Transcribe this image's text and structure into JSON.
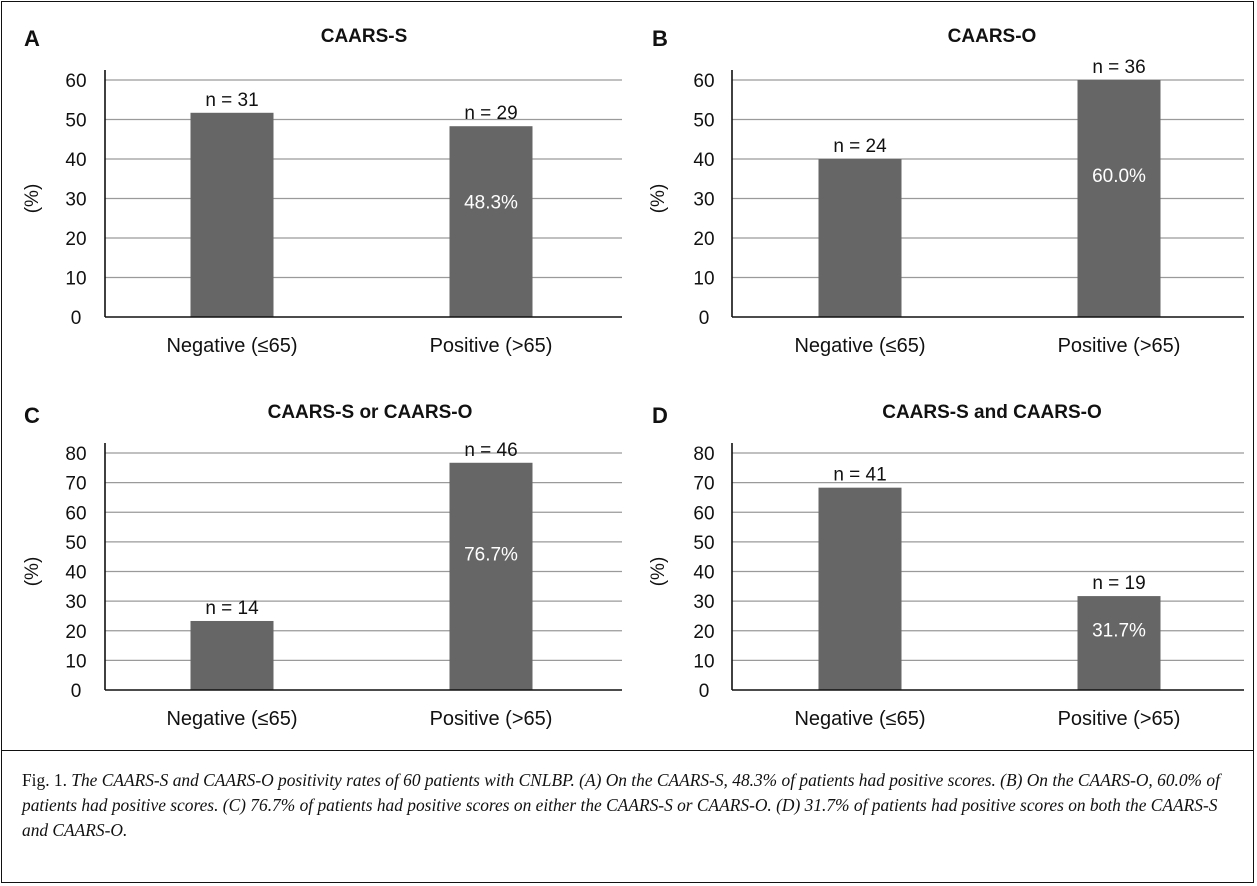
{
  "chart_data": [
    {
      "type": "bar",
      "panel": "A",
      "title": "CAARS-S",
      "ylabel": "(%)",
      "categories": [
        "Negative (≤65)",
        "Positive (>65)"
      ],
      "values": [
        51.7,
        48.3
      ],
      "n_labels": [
        "n = 31",
        "n = 29"
      ],
      "bar_labels": [
        "",
        "48.3%"
      ],
      "ylim": [
        0,
        60
      ],
      "yticks": [
        0,
        10,
        20,
        30,
        40,
        50,
        60
      ],
      "grid": true
    },
    {
      "type": "bar",
      "panel": "B",
      "title": "CAARS-O",
      "ylabel": "(%)",
      "categories": [
        "Negative (≤65)",
        "Positive (>65)"
      ],
      "values": [
        40.0,
        60.0
      ],
      "n_labels": [
        "n = 24",
        "n = 36"
      ],
      "bar_labels": [
        "",
        "60.0%"
      ],
      "ylim": [
        0,
        60
      ],
      "yticks": [
        0,
        10,
        20,
        30,
        40,
        50,
        60
      ],
      "grid": true
    },
    {
      "type": "bar",
      "panel": "C",
      "title": "CAARS-S or CAARS-O",
      "ylabel": "(%)",
      "categories": [
        "Negative (≤65)",
        "Positive (>65)"
      ],
      "values": [
        23.3,
        76.7
      ],
      "n_labels": [
        "n = 14",
        "n = 46"
      ],
      "bar_labels": [
        "",
        "76.7%"
      ],
      "ylim": [
        0,
        80
      ],
      "yticks": [
        0,
        10,
        20,
        30,
        40,
        50,
        60,
        70,
        80
      ],
      "grid": true
    },
    {
      "type": "bar",
      "panel": "D",
      "title": "CAARS-S and CAARS-O",
      "ylabel": "(%)",
      "categories": [
        "Negative (≤65)",
        "Positive (>65)"
      ],
      "values": [
        68.3,
        31.7
      ],
      "n_labels": [
        "n = 41",
        "n = 19"
      ],
      "bar_labels": [
        "",
        "31.7%"
      ],
      "ylim": [
        0,
        80
      ],
      "yticks": [
        0,
        10,
        20,
        30,
        40,
        50,
        60,
        70,
        80
      ],
      "grid": true
    }
  ],
  "colors": {
    "bar": "#666666",
    "grid": "#9a9a9a",
    "axis": "#111111",
    "bar_label": "#ffffff"
  },
  "caption": {
    "lead": "Fig. 1. ",
    "body": "The CAARS-S and CAARS-O positivity rates of 60 patients with CNLBP. (A) On the CAARS-S, 48.3% of patients had positive scores. (B) On the CAARS-O, 60.0% of patients had positive scores. (C) 76.7% of patients had positive scores on either the CAARS-S or CAARS-O. (D) 31.7% of patients had positive scores on both the CAARS-S and CAARS-O."
  }
}
